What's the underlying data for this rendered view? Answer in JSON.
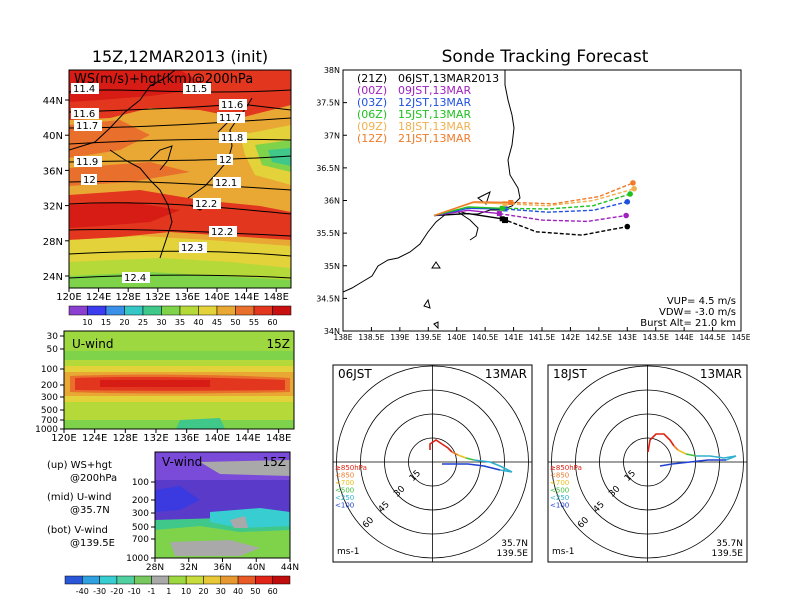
{
  "chart_data": [
    {
      "type": "heatmap",
      "panel": "ws-hgt-200hpa",
      "title": "15Z,12MAR2013 (init)",
      "label": "WS(m/s)+hgt(km)@200hPa",
      "x_ticks": [
        "120E",
        "124E",
        "128E",
        "132E",
        "136E",
        "140E",
        "144E",
        "148E"
      ],
      "y_ticks": [
        "24N",
        "28N",
        "32N",
        "36N",
        "40N",
        "44N"
      ],
      "contour_labels": [
        "11.4",
        "11.5",
        "11.6",
        "11.6",
        "11.7",
        "11.7",
        "11.8",
        "11.9",
        "12",
        "12",
        "12.1",
        "12.2",
        "12.2",
        "12.3",
        "12.4"
      ],
      "colorbar": {
        "labels": [
          "10",
          "15",
          "20",
          "25",
          "30",
          "35",
          "40",
          "45",
          "50",
          "55",
          "60"
        ],
        "colors": [
          "#8b3fd1",
          "#3b3bf0",
          "#3a8fe8",
          "#35c6c6",
          "#3fc88a",
          "#7ed34a",
          "#b6d93a",
          "#e3d23a",
          "#e8a833",
          "#e8702c",
          "#e2361f",
          "#c81010"
        ]
      }
    },
    {
      "type": "heatmap",
      "panel": "u-wind",
      "label": "U-wind",
      "time": "15Z",
      "x_ticks": [
        "120E",
        "124E",
        "128E",
        "132E",
        "136E",
        "140E",
        "144E",
        "148E"
      ],
      "y_ticks": [
        "30",
        "50",
        "100",
        "200",
        "300",
        "500",
        "700",
        "1000"
      ]
    },
    {
      "type": "heatmap",
      "panel": "v-wind",
      "label": "V-wind",
      "time": "15Z",
      "x_ticks": [
        "28N",
        "32N",
        "36N",
        "40N",
        "44N"
      ],
      "y_ticks": [
        "100",
        "200",
        "300",
        "500",
        "700",
        "1000"
      ],
      "colorbar": {
        "labels": [
          "-40",
          "-30",
          "-20",
          "-10",
          "-1",
          "1",
          "10",
          "20",
          "30",
          "40",
          "50",
          "60"
        ],
        "colors": [
          "#2a56d8",
          "#2fa0e0",
          "#38cdd0",
          "#50d0a0",
          "#78c860",
          "#a9a9a9",
          "#9ed840",
          "#c8dc3c",
          "#e8c838",
          "#e89830",
          "#e85a26",
          "#e02418",
          "#c00c0c"
        ]
      }
    },
    {
      "type": "line",
      "panel": "sonde-tracking",
      "title": "Sonde Tracking Forecast",
      "x_ticks": [
        "138E",
        "138.5E",
        "139E",
        "139.5E",
        "140E",
        "140.5E",
        "141E",
        "141.5E",
        "142E",
        "142.5E",
        "143E",
        "143.5E",
        "144E",
        "144.5E",
        "145E"
      ],
      "y_ticks": [
        "34N",
        "34.5N",
        "35N",
        "35.5N",
        "36N",
        "36.5N",
        "37N",
        "37.5N",
        "38N"
      ],
      "xlim": [
        138,
        145
      ],
      "ylim": [
        34,
        38
      ],
      "series": [
        {
          "name": "(21Z)",
          "label": "06JST,13MAR2013",
          "color": "#000000",
          "ascent": [
            [
              139.6,
              35.77
            ],
            [
              140.2,
              35.8
            ],
            [
              140.8,
              35.72
            ]
          ],
          "descent": [
            [
              140.8,
              35.72
            ],
            [
              141.4,
              35.52
            ],
            [
              142.2,
              35.47
            ],
            [
              143.0,
              35.6
            ]
          ]
        },
        {
          "name": "(00Z)",
          "label": "09JST,13MAR",
          "color": "#a020c0",
          "ascent": [
            [
              139.6,
              35.77
            ],
            [
              140.2,
              35.85
            ],
            [
              140.75,
              35.8
            ]
          ],
          "descent": [
            [
              140.75,
              35.8
            ],
            [
              141.5,
              35.7
            ],
            [
              142.3,
              35.68
            ],
            [
              142.98,
              35.77
            ]
          ]
        },
        {
          "name": "(03Z)",
          "label": "12JST,13MAR",
          "color": "#2050e0",
          "ascent": [
            [
              139.6,
              35.77
            ],
            [
              140.2,
              35.88
            ],
            [
              140.85,
              35.87
            ]
          ],
          "descent": [
            [
              140.85,
              35.87
            ],
            [
              141.6,
              35.82
            ],
            [
              142.4,
              35.85
            ],
            [
              143.0,
              35.98
            ]
          ]
        },
        {
          "name": "(06Z)",
          "label": "15JST,13MAR",
          "color": "#20c020",
          "ascent": [
            [
              139.6,
              35.77
            ],
            [
              140.2,
              35.9
            ],
            [
              140.8,
              35.88
            ]
          ],
          "descent": [
            [
              140.8,
              35.88
            ],
            [
              141.6,
              35.87
            ],
            [
              142.4,
              35.92
            ],
            [
              143.05,
              36.1
            ]
          ]
        },
        {
          "name": "(09Z)",
          "label": "18JST,13MAR",
          "color": "#f0b050",
          "ascent": [
            [
              139.6,
              35.77
            ],
            [
              140.3,
              35.97
            ],
            [
              140.85,
              35.95
            ]
          ],
          "descent": [
            [
              140.85,
              35.95
            ],
            [
              141.6,
              35.92
            ],
            [
              142.4,
              36.0
            ],
            [
              143.12,
              36.18
            ]
          ]
        },
        {
          "name": "(12Z)",
          "label": "21JST,13MAR",
          "color": "#f07a28",
          "ascent": [
            [
              139.6,
              35.77
            ],
            [
              140.3,
              35.98
            ],
            [
              140.95,
              35.97
            ]
          ],
          "descent": [
            [
              140.95,
              35.97
            ],
            [
              141.7,
              35.95
            ],
            [
              142.5,
              36.06
            ],
            [
              143.1,
              36.27
            ]
          ]
        }
      ],
      "launch_point": [
        140.85,
        35.7
      ],
      "annotations": [
        "VUP= 4.5 m/s",
        "VDW= -3.0 m/s",
        "Burst Alt= 21.0 km"
      ]
    },
    {
      "type": "line",
      "panel": "hodograph-06jst",
      "left_label": "06JST",
      "right_label": "13MAR",
      "ring_labels": [
        "15",
        "30",
        "45",
        "60"
      ],
      "legend": [
        "≥850hPa",
        "<850",
        "<700",
        "<500",
        "<250",
        "<100"
      ],
      "legend_colors": [
        "#e02010",
        "#f07a28",
        "#e8c020",
        "#40c040",
        "#30b0d0",
        "#2040d0"
      ],
      "unit": "ms-1",
      "lat": "35.7N",
      "lon": "139.5E"
    },
    {
      "type": "line",
      "panel": "hodograph-18jst",
      "left_label": "18JST",
      "right_label": "13MAR",
      "ring_labels": [
        "15",
        "30",
        "45",
        "60"
      ],
      "legend": [
        "≥850hPa",
        "<850",
        "<700",
        "<500",
        "<250",
        "<100"
      ],
      "legend_colors": [
        "#e02010",
        "#f07a28",
        "#e8c020",
        "#40c040",
        "#30b0d0",
        "#2040d0"
      ],
      "unit": "ms-1",
      "lat": "35.7N",
      "lon": "139.5E"
    }
  ],
  "legend_text": {
    "up_1": "(up) WS+hgt",
    "up_2": "@200hPa",
    "mid_1": "(mid) U-wind",
    "mid_2": "@35.7N",
    "bot_1": "(bot) V-wind",
    "bot_2": "@139.5E"
  }
}
